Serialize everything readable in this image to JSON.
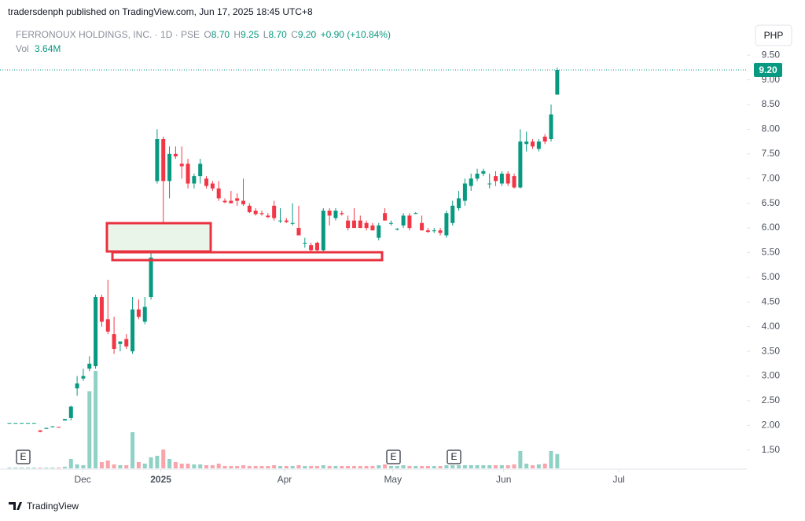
{
  "header": {
    "byline": "tradersdenph published on TradingView.com, Jun 17, 2025 18:45 UTC+8"
  },
  "legend": {
    "symbol": "FERRONOUX HOLDINGS, INC. · 1D · PSE",
    "o_label": "O",
    "o": "8.70",
    "h_label": "H",
    "h": "9.25",
    "l_label": "L",
    "l": "8.70",
    "c_label": "C",
    "c": "9.20",
    "change": "+0.90 (+10.84%)",
    "vol_label": "Vol",
    "vol": "3.64M"
  },
  "currency": "PHP",
  "earnings_markers": [
    "E",
    "E",
    "E"
  ],
  "footer": {
    "brand": "TradingView"
  },
  "chart_data": {
    "type": "candlestick",
    "categories": [
      null,
      null,
      null,
      null,
      null,
      null,
      null,
      null,
      null,
      null,
      null,
      null,
      null,
      null,
      null,
      null,
      null,
      null,
      null,
      null,
      null,
      null,
      null,
      null,
      null,
      null,
      null,
      null,
      null,
      null,
      null,
      null,
      null,
      null,
      null,
      null,
      null,
      null,
      null,
      null,
      null,
      null,
      null,
      null,
      null,
      null,
      null,
      null,
      null,
      null,
      null,
      null,
      null,
      null,
      null,
      null,
      null,
      null,
      null,
      null,
      null,
      null,
      null,
      null,
      null,
      null,
      null,
      null,
      null,
      null,
      null,
      null,
      null,
      null,
      null,
      null,
      null,
      null,
      null,
      null,
      null,
      null,
      null,
      null,
      null,
      null,
      null,
      null,
      null,
      null
    ],
    "open": [
      2.05,
      2.05,
      2.05,
      2.05,
      2.05,
      1.9,
      1.93,
      1.97,
      1.97,
      2.1,
      2.15,
      2.75,
      2.95,
      3.15,
      3.2,
      4.6,
      4.15,
      3.85,
      3.65,
      3.75,
      3.5,
      4.35,
      4.1,
      4.6,
      6.95,
      7.8,
      6.95,
      7.5,
      7.3,
      7.3,
      6.9,
      7.05,
      7.0,
      6.9,
      6.8,
      6.55,
      6.55,
      6.6,
      6.55,
      6.45,
      6.35,
      6.3,
      6.25,
      6.45,
      6.15,
      6.15,
      6.1,
      6.0,
      5.7,
      5.65,
      5.7,
      5.55,
      6.35,
      6.2,
      6.3,
      6.15,
      6.15,
      6.15,
      6.1,
      6.05,
      5.8,
      6.3,
      6.1,
      5.98,
      6.05,
      6.25,
      6.3,
      6.1,
      5.95,
      5.95,
      5.95,
      5.85,
      6.1,
      6.4,
      6.55,
      6.85,
      7.0,
      7.1,
      6.9,
      7.05,
      6.9,
      7.1,
      7.05,
      6.82,
      7.7,
      7.75,
      7.6,
      7.85,
      7.8,
      8.7
    ],
    "high": [
      2.05,
      2.05,
      2.05,
      2.05,
      2.05,
      1.9,
      1.95,
      1.99,
      1.97,
      2.13,
      2.4,
      3.0,
      3.15,
      3.4,
      4.65,
      4.65,
      4.95,
      4.2,
      3.7,
      3.85,
      4.6,
      4.55,
      4.6,
      5.5,
      8.0,
      7.85,
      7.65,
      7.65,
      7.65,
      7.4,
      7.1,
      7.4,
      7.05,
      6.95,
      6.95,
      6.6,
      6.75,
      6.7,
      7.0,
      6.5,
      6.4,
      6.35,
      6.3,
      6.55,
      6.4,
      6.2,
      6.5,
      6.45,
      5.8,
      5.7,
      5.72,
      6.4,
      6.4,
      6.4,
      6.35,
      6.25,
      6.4,
      6.25,
      6.15,
      6.1,
      6.1,
      6.4,
      6.15,
      6.0,
      6.3,
      6.3,
      6.32,
      6.25,
      6.0,
      6.0,
      6.0,
      6.35,
      6.55,
      6.75,
      7.0,
      7.1,
      7.2,
      7.2,
      7.1,
      7.15,
      7.15,
      7.15,
      7.1,
      8.0,
      7.95,
      7.8,
      7.8,
      7.9,
      8.5,
      9.25
    ],
    "low": [
      2.05,
      2.05,
      2.05,
      2.05,
      2.05,
      1.86,
      1.93,
      1.97,
      1.96,
      2.1,
      2.1,
      2.6,
      2.9,
      3.1,
      3.15,
      4.0,
      3.85,
      3.45,
      3.5,
      3.55,
      3.45,
      4.15,
      4.05,
      4.55,
      6.9,
      6.05,
      6.6,
      7.4,
      7.0,
      6.8,
      6.8,
      6.9,
      6.8,
      6.75,
      6.55,
      6.5,
      6.5,
      6.45,
      6.45,
      6.3,
      6.25,
      6.25,
      6.2,
      6.15,
      6.1,
      6.1,
      6.05,
      5.85,
      5.6,
      5.5,
      5.5,
      5.5,
      6.05,
      6.15,
      6.25,
      5.95,
      6.0,
      6.0,
      5.95,
      5.95,
      5.75,
      6.15,
      6.05,
      5.95,
      6.0,
      5.95,
      6.28,
      5.95,
      5.9,
      5.9,
      5.85,
      5.8,
      6.05,
      6.35,
      6.45,
      6.75,
      6.95,
      7.05,
      6.8,
      6.85,
      6.85,
      6.85,
      6.8,
      6.8,
      7.55,
      7.6,
      7.55,
      7.7,
      7.75,
      8.7
    ],
    "close": [
      2.05,
      2.05,
      2.05,
      2.05,
      2.05,
      1.87,
      1.95,
      1.98,
      1.96,
      2.13,
      2.38,
      2.85,
      3.0,
      3.25,
      4.6,
      4.1,
      3.9,
      3.55,
      3.7,
      3.6,
      4.35,
      4.2,
      4.4,
      5.4,
      7.8,
      6.95,
      7.5,
      7.45,
      7.25,
      6.9,
      7.05,
      7.3,
      6.85,
      6.8,
      6.6,
      6.52,
      6.5,
      6.55,
      6.48,
      6.32,
      6.28,
      6.28,
      6.22,
      6.2,
      6.15,
      6.12,
      6.1,
      5.85,
      5.7,
      5.55,
      5.55,
      6.35,
      6.25,
      6.35,
      6.28,
      6.0,
      6.0,
      6.0,
      6.0,
      5.95,
      6.05,
      6.15,
      6.1,
      5.98,
      6.25,
      6.0,
      6.3,
      5.95,
      5.92,
      5.95,
      5.9,
      6.3,
      6.45,
      6.6,
      6.9,
      7.0,
      7.1,
      7.15,
      6.9,
      6.95,
      7.1,
      6.9,
      6.82,
      7.75,
      7.75,
      7.65,
      7.75,
      7.75,
      8.3,
      9.2
    ],
    "volume": [
      200000,
      200000,
      200000,
      200000,
      200000,
      200000,
      200000,
      200000,
      200000,
      400000,
      2400000,
      1000000,
      800000,
      19600000,
      24800000,
      1600000,
      2000000,
      1000000,
      800000,
      800000,
      9200000,
      1600000,
      1200000,
      2800000,
      3200000,
      4800000,
      2400000,
      1600000,
      1200000,
      1200000,
      1000000,
      1000000,
      800000,
      800000,
      1200000,
      600000,
      600000,
      600000,
      800000,
      600000,
      600000,
      600000,
      600000,
      800000,
      600000,
      600000,
      600000,
      800000,
      600000,
      600000,
      600000,
      800000,
      600000,
      600000,
      600000,
      600000,
      600000,
      600000,
      600000,
      600000,
      800000,
      1000000,
      600000,
      600000,
      800000,
      600000,
      600000,
      600000,
      600000,
      600000,
      600000,
      800000,
      800000,
      800000,
      800000,
      800000,
      800000,
      800000,
      800000,
      800000,
      800000,
      800000,
      1000000,
      4400000,
      1200000,
      800000,
      1000000,
      1200000,
      4400000,
      3640000
    ],
    "up_color": "#089981",
    "down_color": "#f23645",
    "ylim": [
      1.13,
      10.14
    ],
    "yticks": [
      {
        "value": 1.5,
        "label": "1.50"
      },
      {
        "value": 2,
        "label": "2.00"
      },
      {
        "value": 2.5,
        "label": "2.50"
      },
      {
        "value": 3,
        "label": "3.00"
      },
      {
        "value": 3.5,
        "label": "3.50"
      },
      {
        "value": 4,
        "label": "4.00"
      },
      {
        "value": 4.5,
        "label": "4.50"
      },
      {
        "value": 5,
        "label": "5.00"
      },
      {
        "value": 5.5,
        "label": "5.50"
      },
      {
        "value": 6,
        "label": "6.00"
      },
      {
        "value": 6.5,
        "label": "6.50"
      },
      {
        "value": 7,
        "label": "7.00"
      },
      {
        "value": 7.5,
        "label": "7.50"
      },
      {
        "value": 8,
        "label": "8.00"
      },
      {
        "value": 8.5,
        "label": "8.50"
      },
      {
        "value": 9,
        "label": "9.00"
      },
      {
        "value": 9.5,
        "label": "9.50"
      }
    ],
    "xlim": [
      -1.53,
      119.8
    ],
    "xticks": [
      {
        "value": 11.9,
        "label": "Dec"
      },
      {
        "value": 24.6,
        "label": "2025"
      },
      {
        "value": 44.7,
        "label": "Apr"
      },
      {
        "value": 62.3,
        "label": "May"
      },
      {
        "value": 80.3,
        "label": "Jun"
      },
      {
        "value": 99,
        "label": "Jul"
      }
    ],
    "volume_ylim": [
      0,
      30000000
    ],
    "last_price": {
      "value": 9.2,
      "label": "9.20"
    },
    "grid": false
  }
}
